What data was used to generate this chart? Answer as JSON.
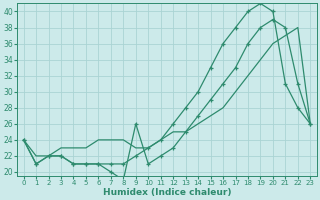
{
  "line_jagged": {
    "x": [
      0,
      1,
      2,
      3,
      4,
      5,
      6,
      7,
      8,
      9,
      10,
      11,
      12,
      13,
      14,
      15,
      16,
      17,
      18,
      19,
      20,
      21,
      22,
      23
    ],
    "y": [
      24,
      21,
      22,
      22,
      21,
      21,
      21,
      20,
      19,
      26,
      21,
      22,
      23,
      25,
      27,
      29,
      31,
      33,
      36,
      38,
      39,
      38,
      31,
      26
    ],
    "color": "#2e8b6e",
    "linewidth": 0.9,
    "marker": "+"
  },
  "line_high": {
    "x": [
      0,
      1,
      2,
      3,
      4,
      5,
      6,
      7,
      8,
      9,
      10,
      11,
      12,
      13,
      14,
      15,
      16,
      17,
      18,
      19,
      20,
      21,
      22,
      23
    ],
    "y": [
      24,
      21,
      22,
      22,
      21,
      21,
      21,
      21,
      21,
      22,
      23,
      24,
      26,
      28,
      30,
      33,
      36,
      38,
      40,
      41,
      40,
      31,
      28,
      26
    ],
    "color": "#2e8b6e",
    "linewidth": 0.9,
    "marker": "+"
  },
  "line_smooth": {
    "x": [
      0,
      1,
      2,
      3,
      4,
      5,
      6,
      7,
      8,
      9,
      10,
      11,
      12,
      13,
      14,
      15,
      16,
      17,
      18,
      19,
      20,
      21,
      22,
      23
    ],
    "y": [
      24,
      22,
      22,
      23,
      23,
      23,
      24,
      24,
      24,
      23,
      23,
      24,
      25,
      25,
      26,
      27,
      28,
      30,
      32,
      34,
      36,
      37,
      38,
      26
    ],
    "color": "#2e8b6e",
    "linewidth": 0.9,
    "marker": null
  },
  "xlabel": "Humidex (Indice chaleur)",
  "xlim": [
    -0.5,
    23.5
  ],
  "ylim": [
    19.5,
    41
  ],
  "yticks": [
    20,
    22,
    24,
    26,
    28,
    30,
    32,
    34,
    36,
    38,
    40
  ],
  "xticks": [
    0,
    1,
    2,
    3,
    4,
    5,
    6,
    7,
    8,
    9,
    10,
    11,
    12,
    13,
    14,
    15,
    16,
    17,
    18,
    19,
    20,
    21,
    22,
    23
  ],
  "bg_color": "#cceaea",
  "grid_color": "#aad4d4",
  "line_color": "#2e8b6e",
  "tick_color": "#2e8b6e"
}
